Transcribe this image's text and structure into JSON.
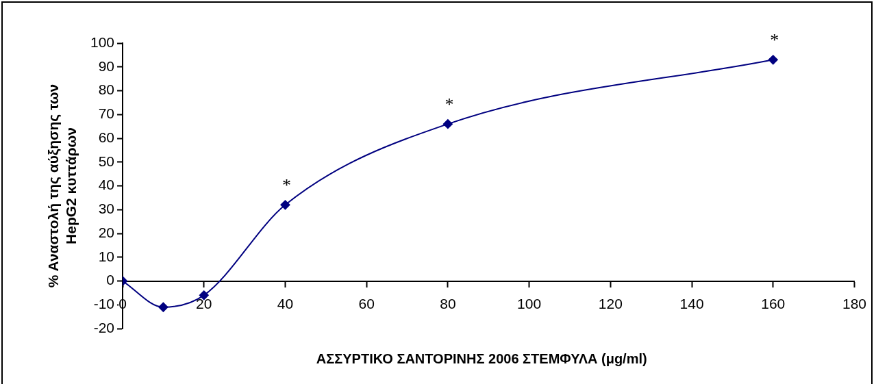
{
  "chart_data": {
    "type": "line",
    "xlabel": "ΑΣΣΥΡΤΙΚΟ ΣΑΝΤΟΡΙΝΗΣ 2006 ΣΤΕΜΦΥΛΑ (μg/ml)",
    "ylabel": "% Αναστολή της αύξησης των HepG2 κυττάρων",
    "x": [
      0,
      10,
      20,
      40,
      80,
      160
    ],
    "series": [
      {
        "color": "#000080",
        "values": [
          0,
          -11,
          -6,
          32,
          66,
          93
        ]
      }
    ],
    "xlim": [
      0,
      180
    ],
    "xticks": [
      0,
      20,
      40,
      60,
      80,
      100,
      120,
      140,
      160,
      180
    ],
    "ylim": [
      -20,
      100
    ],
    "yticks": [
      -20,
      -10,
      0,
      10,
      20,
      30,
      40,
      50,
      60,
      70,
      80,
      90,
      100
    ],
    "grid": false,
    "legend": false,
    "marker": "diamond",
    "line_style": "solid",
    "annotations": [
      {
        "text": "*",
        "x": 40,
        "y": 32
      },
      {
        "text": "*",
        "x": 80,
        "y": 66
      },
      {
        "text": "*",
        "x": 160,
        "y": 93
      }
    ]
  }
}
